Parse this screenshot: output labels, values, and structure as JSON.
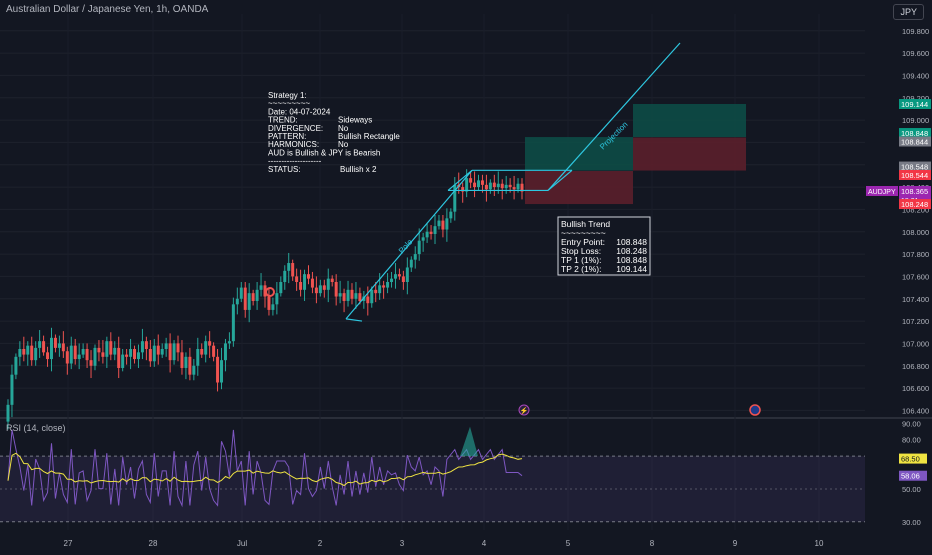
{
  "header": {
    "title": "Australian Dollar / Japanese Yen, 1h, OANDA",
    "currency": "JPY",
    "rsi_label": "RSI (14, close)"
  },
  "strategy": {
    "lines": [
      [
        "Strategy 1:",
        ""
      ],
      [
        "~~~~~~~~~",
        ""
      ],
      [
        "Date: 04-07-2024",
        ""
      ],
      [
        "TREND:",
        "Sideways"
      ],
      [
        "DIVERGENCE:",
        "No"
      ],
      [
        "PATTERN:",
        "Bullish Rectangle"
      ],
      [
        "HARMONICS:",
        "No"
      ],
      [
        "AUD is Bullish & JPY is Bearish",
        ""
      ],
      [
        "--------------------",
        ""
      ],
      [
        "STATUS:",
        "Bullish x 2"
      ]
    ]
  },
  "trend_box": {
    "lines": [
      [
        "Bullish Trend",
        ""
      ],
      [
        "~~~~~~~~~",
        ""
      ],
      [
        "Entry Point:",
        "108.848"
      ],
      [
        "Stop Loss:",
        "108.248"
      ],
      [
        "TP 1 (1%):",
        "108.848"
      ],
      [
        "TP 2 (1%):",
        "109.144"
      ]
    ]
  },
  "annotations": {
    "pole": "Pole",
    "projection": "Projection"
  },
  "price_tags": [
    {
      "value": "109.144",
      "color": "#089981"
    },
    {
      "value": "108.848",
      "color": "#089981"
    },
    {
      "value": "108.844",
      "color": "#787b86"
    },
    {
      "value": "108.548",
      "color": "#787b86"
    },
    {
      "value": "108.544",
      "color": "#f23645"
    },
    {
      "value": "108.365",
      "color": "#9c27b0",
      "symbol": "AUDJPY",
      "countdown": "18:31"
    },
    {
      "value": "108.248",
      "color": "#f23645"
    }
  ],
  "rsi_tags": [
    {
      "value": "68.50",
      "color": "#f0e442",
      "text_color": "#131722"
    },
    {
      "value": "58.06",
      "color": "#7e57c2",
      "text_color": "#ffffff"
    }
  ],
  "colors": {
    "up": "#26a69a",
    "down": "#ef5350",
    "pattern": "#2ec7e0",
    "rsi": "#7e57c2",
    "rsi_ma": "#f0e442",
    "tp_zone": "#0d4f48",
    "sl_zone": "#5b1f2b"
  },
  "chart_data": [
    {
      "type": "candlestick",
      "title": "Australian Dollar / Japanese Yen, 1h, OANDA",
      "ylim": [
        106.35,
        109.95
      ],
      "y_ticks": [
        106.4,
        106.6,
        106.8,
        107.0,
        107.2,
        107.4,
        107.6,
        107.8,
        108.0,
        108.2,
        108.4,
        108.6,
        108.8,
        109.0,
        109.2,
        109.4,
        109.6,
        109.8
      ],
      "y_tick_labels": [
        "106.400",
        "106.600",
        "106.800",
        "107.000",
        "107.200",
        "107.400",
        "107.600",
        "107.800",
        "108.000",
        "108.200",
        "108.400",
        "108.600",
        "108.800",
        "109.000",
        "109.200",
        "109.400",
        "109.600",
        "109.800"
      ],
      "x_tick_labels": [
        "27",
        "28",
        "Jul",
        "2",
        "3",
        "4",
        "5",
        "8",
        "9",
        "10"
      ],
      "close": [
        106.45,
        106.72,
        106.88,
        106.95,
        106.9,
        106.98,
        106.85,
        106.96,
        107.02,
        106.92,
        106.86,
        107.05,
        106.96,
        107.0,
        106.93,
        106.82,
        106.98,
        106.86,
        106.9,
        106.95,
        106.85,
        106.8,
        106.96,
        106.92,
        106.88,
        107.02,
        106.9,
        106.96,
        106.78,
        106.9,
        106.88,
        106.95,
        106.86,
        106.92,
        107.02,
        106.95,
        106.84,
        106.98,
        106.9,
        106.95,
        107.0,
        106.85,
        107.0,
        106.92,
        106.78,
        106.88,
        106.72,
        106.8,
        106.95,
        106.9,
        107.02,
        106.98,
        106.88,
        106.65,
        106.85,
        107.0,
        107.02,
        107.35,
        107.4,
        107.5,
        107.3,
        107.45,
        107.38,
        107.48,
        107.52,
        107.42,
        107.3,
        107.35,
        107.45,
        107.55,
        107.65,
        107.72,
        107.6,
        107.55,
        107.48,
        107.62,
        107.58,
        107.5,
        107.45,
        107.52,
        107.48,
        107.58,
        107.55,
        107.42,
        107.45,
        107.38,
        107.48,
        107.4,
        107.45,
        107.38,
        107.42,
        107.36,
        107.48,
        107.45,
        107.52,
        107.5,
        107.55,
        107.58,
        107.62,
        107.6,
        107.55,
        107.68,
        107.75,
        107.8,
        107.92,
        107.95,
        108.0,
        107.98,
        108.05,
        108.1,
        108.02,
        108.12,
        108.18,
        108.42,
        108.4,
        108.36,
        108.48,
        108.44,
        108.4,
        108.46,
        108.42,
        108.38,
        108.44,
        108.4,
        108.43,
        108.39,
        108.42,
        108.4,
        108.38,
        108.43,
        108.36
      ],
      "rsi": {
        "ylim": [
          25,
          92
        ],
        "y_ticks": [
          30,
          40,
          50,
          60,
          70,
          80,
          90
        ],
        "y_tick_labels": [
          "30.00",
          "40.00",
          "50.00",
          "60.00",
          "70.00",
          "80.00",
          "90.00"
        ],
        "overbought": 70,
        "oversold": 30,
        "last": 58.06,
        "ma_last": 68.5
      }
    }
  ]
}
